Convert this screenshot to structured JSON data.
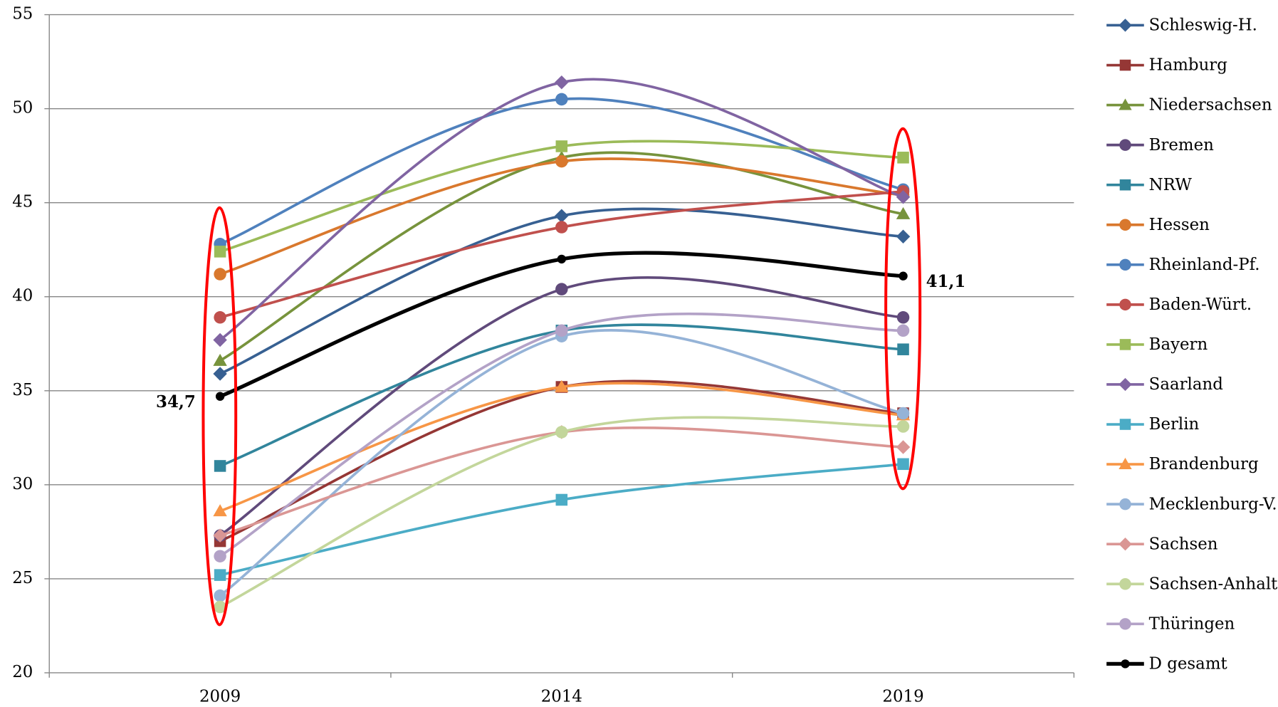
{
  "chart_data": {
    "type": "line",
    "categories": [
      "2009",
      "2014",
      "2019"
    ],
    "ylim": [
      20,
      55
    ],
    "yticks": [
      20,
      25,
      30,
      35,
      40,
      45,
      50,
      55
    ],
    "grid": true,
    "smooth": true,
    "legend": "right",
    "series": [
      {
        "name": "Schleswig-H.",
        "color": "#376092",
        "marker": "diamond",
        "values": [
          35.9,
          44.3,
          43.2
        ]
      },
      {
        "name": "Hamburg",
        "color": "#953735",
        "marker": "square",
        "values": [
          27.0,
          35.2,
          33.8
        ]
      },
      {
        "name": "Niedersachsen",
        "color": "#77933c",
        "marker": "triangle",
        "values": [
          36.6,
          47.4,
          44.4
        ]
      },
      {
        "name": "Bremen",
        "color": "#604a7b",
        "marker": "circle",
        "values": [
          27.3,
          40.4,
          38.9
        ]
      },
      {
        "name": "NRW",
        "color": "#31859c",
        "marker": "square",
        "values": [
          31.0,
          38.2,
          37.2
        ]
      },
      {
        "name": "Hessen",
        "color": "#d9782d",
        "marker": "circle",
        "values": [
          41.2,
          47.2,
          45.4
        ]
      },
      {
        "name": "Rheinland-Pf.",
        "color": "#4f81bd",
        "marker": "circle",
        "values": [
          42.8,
          50.5,
          45.7
        ]
      },
      {
        "name": "Baden-Würt.",
        "color": "#c0504d",
        "marker": "circle",
        "values": [
          38.9,
          43.7,
          45.6
        ]
      },
      {
        "name": "Bayern",
        "color": "#9bbb59",
        "marker": "square",
        "values": [
          42.4,
          48.0,
          47.4
        ]
      },
      {
        "name": "Saarland",
        "color": "#8064a2",
        "marker": "diamond",
        "values": [
          37.7,
          51.4,
          45.3
        ]
      },
      {
        "name": "Berlin",
        "color": "#4bacc6",
        "marker": "square",
        "values": [
          25.2,
          29.2,
          31.1
        ]
      },
      {
        "name": "Brandenburg",
        "color": "#f79646",
        "marker": "triangle",
        "values": [
          28.6,
          35.2,
          33.7
        ]
      },
      {
        "name": "Mecklenburg-V.",
        "color": "#95b3d7",
        "marker": "circle",
        "values": [
          24.1,
          37.9,
          33.8
        ]
      },
      {
        "name": "Sachsen",
        "color": "#da9694",
        "marker": "diamond",
        "values": [
          27.3,
          32.8,
          32.0
        ]
      },
      {
        "name": "Sachsen-Anhalt",
        "color": "#c3d69b",
        "marker": "circle",
        "values": [
          23.5,
          32.8,
          33.1
        ]
      },
      {
        "name": "Thüringen",
        "color": "#b3a2c7",
        "marker": "circle",
        "values": [
          26.2,
          38.2,
          38.2
        ]
      },
      {
        "name": "D gesamt",
        "color": "#000000",
        "marker": "circle",
        "values": [
          34.7,
          42.0,
          41.1
        ],
        "value_labels": [
          "34,7",
          null,
          "41,1"
        ]
      }
    ]
  }
}
